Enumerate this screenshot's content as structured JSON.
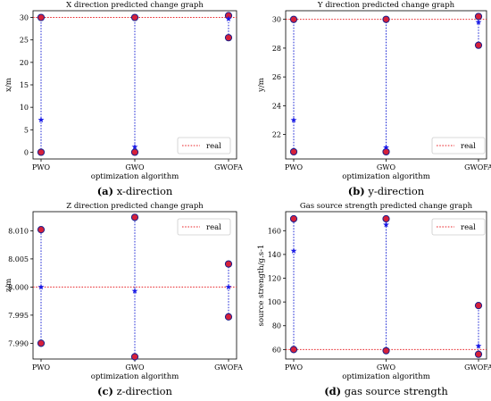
{
  "chart_data": [
    {
      "type": "scatter",
      "title": "X direction predicted change graph",
      "caption_letter": "(a)",
      "caption_text": " x-direction",
      "xlabel": "optimization algorithm",
      "ylabel": "x/m",
      "categories": [
        "PWO",
        "GWO",
        "GWOFA"
      ],
      "ylim": [
        -1.5,
        31.5
      ],
      "yticks": [
        0,
        5,
        10,
        15,
        20,
        25,
        30
      ],
      "ytick_labels": [
        "0",
        "5",
        "10",
        "15",
        "20",
        "25",
        "30"
      ],
      "real_value": 30,
      "legend": "real",
      "legend_position": "bottom-right",
      "circle_points": [
        [
          0,
          30
        ],
        [
          0,
          0
        ],
        [
          1,
          30
        ],
        [
          1,
          0
        ],
        [
          2,
          30.4
        ],
        [
          2,
          25.5
        ]
      ],
      "star_points": [
        [
          0,
          7.2
        ],
        [
          1,
          1.2
        ],
        [
          2,
          29.7
        ]
      ],
      "vlines": [
        [
          0,
          0,
          30
        ],
        [
          1,
          0,
          30
        ],
        [
          2,
          25.5,
          30.4
        ]
      ]
    },
    {
      "type": "scatter",
      "title": "Y direction predicted change graph",
      "caption_letter": "(b)",
      "caption_text": " y-direction",
      "xlabel": "optimization algorithm",
      "ylabel": "y/m",
      "categories": [
        "PWO",
        "GWO",
        "GWOFA"
      ],
      "ylim": [
        20.3,
        30.6
      ],
      "yticks": [
        22,
        24,
        26,
        28,
        30
      ],
      "ytick_labels": [
        "22",
        "24",
        "26",
        "28",
        "30"
      ],
      "real_value": 30,
      "legend": "real",
      "legend_position": "bottom-right",
      "circle_points": [
        [
          0,
          30
        ],
        [
          0,
          20.8
        ],
        [
          1,
          30
        ],
        [
          1,
          20.8
        ],
        [
          2,
          30.2
        ],
        [
          2,
          28.2
        ]
      ],
      "star_points": [
        [
          0,
          23
        ],
        [
          1,
          21.1
        ],
        [
          2,
          29.8
        ]
      ],
      "vlines": [
        [
          0,
          20.8,
          30
        ],
        [
          1,
          20.8,
          30
        ],
        [
          2,
          28.2,
          30.2
        ]
      ]
    },
    {
      "type": "scatter",
      "title": "Z direction predicted change graph",
      "caption_letter": "(c)",
      "caption_text": " z-direction",
      "xlabel": "optimization algorithm",
      "ylabel": "z/m",
      "categories": [
        "PWO",
        "GWO",
        "GWOFA"
      ],
      "ylim": [
        7.9872,
        8.0134
      ],
      "yticks": [
        7.99,
        7.995,
        8.0,
        8.005,
        8.01
      ],
      "ytick_labels": [
        "7.990",
        "7.995",
        "8.000",
        "8.005",
        "8.010"
      ],
      "real_value": 8.0,
      "legend": "real",
      "legend_position": "top-right",
      "circle_points": [
        [
          0,
          8.0102
        ],
        [
          0,
          7.99
        ],
        [
          1,
          8.0124
        ],
        [
          1,
          7.9876
        ],
        [
          2,
          8.0041
        ],
        [
          2,
          7.9947
        ]
      ],
      "star_points": [
        [
          0,
          8.0
        ],
        [
          1,
          7.9993
        ],
        [
          2,
          8.0
        ]
      ],
      "vlines": [
        [
          0,
          7.99,
          8.0102
        ],
        [
          1,
          7.9876,
          8.0124
        ],
        [
          2,
          7.9947,
          8.0041
        ]
      ]
    },
    {
      "type": "scatter",
      "title": "Gas source strength predicted change graph",
      "caption_letter": "(d)",
      "caption_text": " gas source strength",
      "xlabel": "optimization algorithm",
      "ylabel": "source strength/g.s-1",
      "categories": [
        "PWO",
        "GWO",
        "GWOFA"
      ],
      "ylim": [
        52,
        176
      ],
      "yticks": [
        60,
        80,
        100,
        120,
        140,
        160
      ],
      "ytick_labels": [
        "60",
        "80",
        "100",
        "120",
        "140",
        "160"
      ],
      "real_value": 60,
      "legend": "real",
      "legend_position": "top-right",
      "circle_points": [
        [
          0,
          170
        ],
        [
          0,
          60
        ],
        [
          1,
          170
        ],
        [
          1,
          59
        ],
        [
          2,
          97
        ],
        [
          2,
          56
        ]
      ],
      "star_points": [
        [
          0,
          143
        ],
        [
          1,
          165
        ],
        [
          2,
          63
        ]
      ],
      "vlines": [
        [
          0,
          60,
          170
        ],
        [
          1,
          59,
          170
        ],
        [
          2,
          56,
          97
        ]
      ]
    }
  ]
}
